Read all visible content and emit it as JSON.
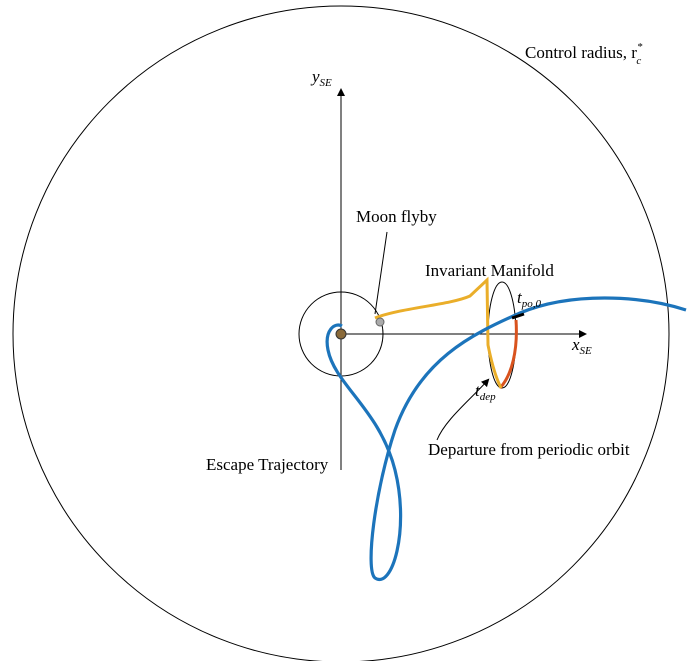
{
  "labels": {
    "control_radius": {
      "text": "Control radius, r",
      "sub": "c",
      "sup": "*"
    },
    "y_axis": {
      "text": "y",
      "sub": "SE"
    },
    "x_axis": {
      "text": "x",
      "sub": "SE"
    },
    "moon_flyby": "Moon flyby",
    "invariant_manifold": "Invariant Manifold",
    "t_po": {
      "text": "t",
      "sub": "po,0"
    },
    "t_dep": {
      "text": "t",
      "sub": "dep"
    },
    "departure": "Departure from periodic orbit",
    "escape": "Escape Trajectory"
  }
}
